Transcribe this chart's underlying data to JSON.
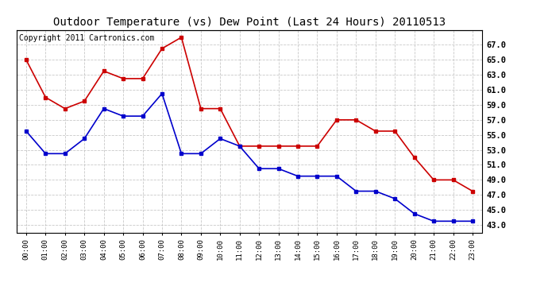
{
  "title": "Outdoor Temperature (vs) Dew Point (Last 24 Hours) 20110513",
  "copyright": "Copyright 2011 Cartronics.com",
  "x_labels": [
    "00:00",
    "01:00",
    "02:00",
    "03:00",
    "04:00",
    "05:00",
    "06:00",
    "07:00",
    "08:00",
    "09:00",
    "10:00",
    "11:00",
    "12:00",
    "13:00",
    "14:00",
    "15:00",
    "16:00",
    "17:00",
    "18:00",
    "19:00",
    "20:00",
    "21:00",
    "22:00",
    "23:00"
  ],
  "temp_red": [
    65.0,
    60.0,
    58.5,
    59.5,
    63.5,
    62.5,
    62.5,
    66.5,
    68.0,
    58.5,
    58.5,
    53.5,
    53.5,
    53.5,
    53.5,
    53.5,
    57.0,
    57.0,
    55.5,
    55.5,
    52.0,
    49.0,
    49.0,
    47.5
  ],
  "dew_blue": [
    55.5,
    52.5,
    52.5,
    54.5,
    58.5,
    57.5,
    57.5,
    60.5,
    52.5,
    52.5,
    54.5,
    53.5,
    50.5,
    50.5,
    49.5,
    49.5,
    49.5,
    47.5,
    47.5,
    46.5,
    44.5,
    43.5,
    43.5,
    43.5
  ],
  "ylim": [
    42.0,
    69.0
  ],
  "yticks": [
    43.0,
    45.0,
    47.0,
    49.0,
    51.0,
    53.0,
    55.0,
    57.0,
    59.0,
    61.0,
    63.0,
    65.0,
    67.0
  ],
  "background_color": "#ffffff",
  "plot_bg_color": "#ffffff",
  "grid_color": "#bbbbbb",
  "red_color": "#cc0000",
  "blue_color": "#0000cc",
  "title_fontsize": 10,
  "copyright_fontsize": 7
}
